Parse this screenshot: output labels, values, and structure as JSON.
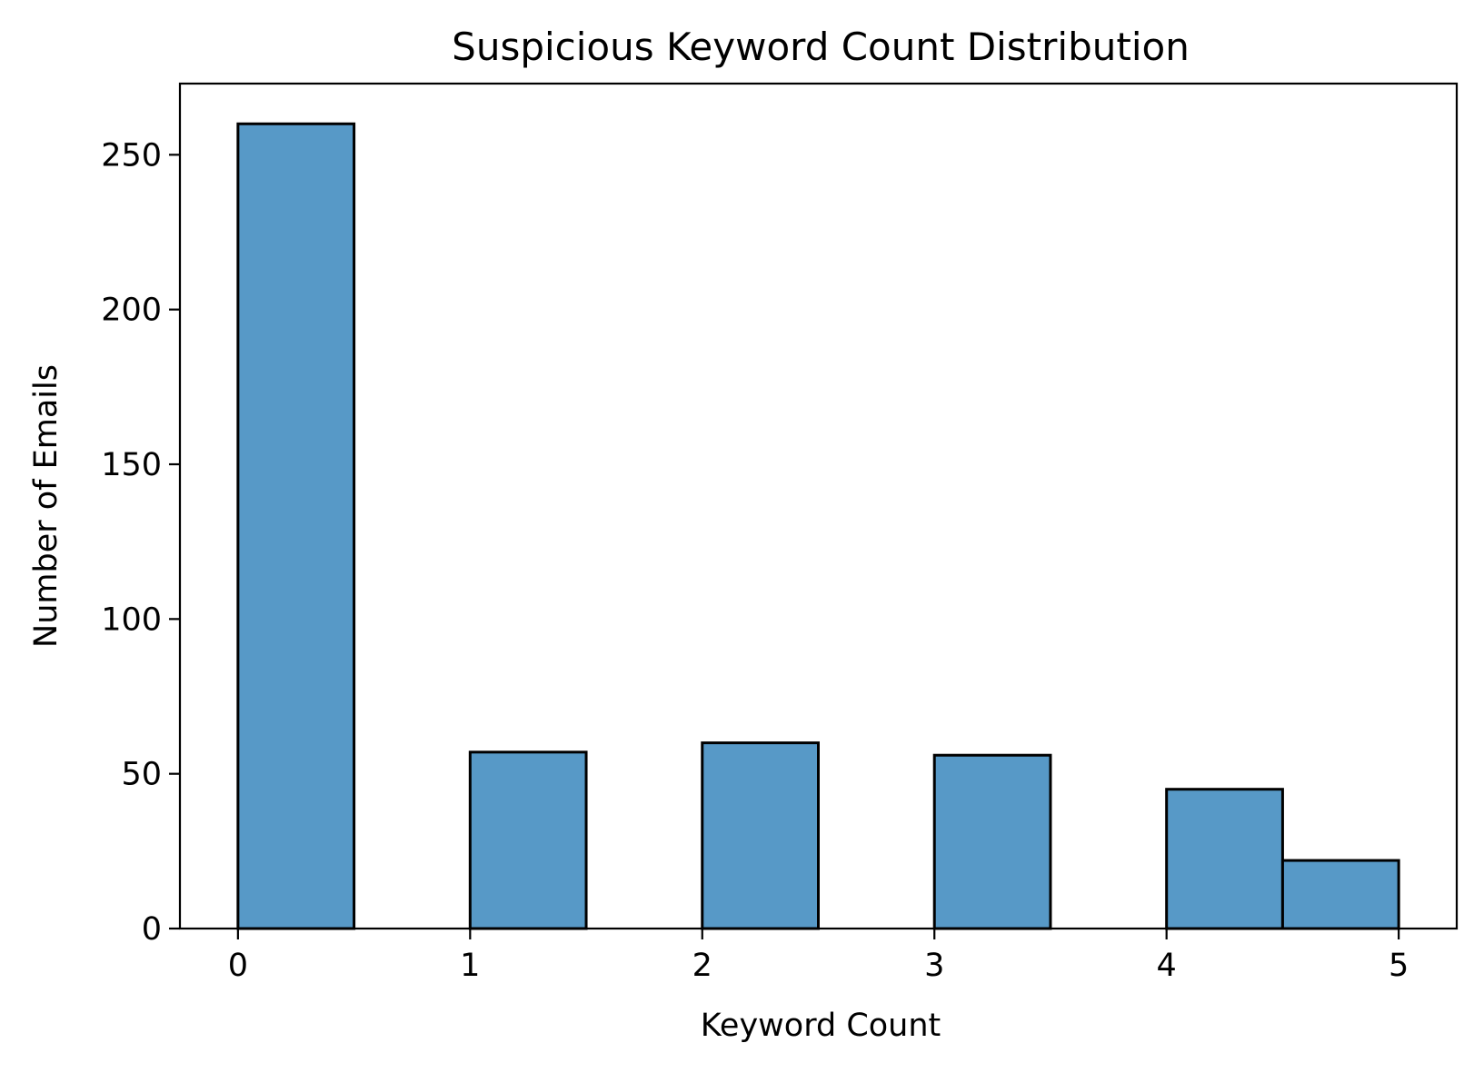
{
  "chart_data": {
    "type": "bar",
    "title": "Suspicious Keyword Count Distribution",
    "xlabel": "Keyword Count",
    "ylabel": "Number of Emails",
    "bins": [
      {
        "start": 0.0,
        "end": 0.5,
        "count": 260
      },
      {
        "start": 0.5,
        "end": 1.0,
        "count": 0
      },
      {
        "start": 1.0,
        "end": 1.5,
        "count": 57
      },
      {
        "start": 1.5,
        "end": 2.0,
        "count": 0
      },
      {
        "start": 2.0,
        "end": 2.5,
        "count": 60
      },
      {
        "start": 2.5,
        "end": 3.0,
        "count": 0
      },
      {
        "start": 3.0,
        "end": 3.5,
        "count": 56
      },
      {
        "start": 3.5,
        "end": 4.0,
        "count": 0
      },
      {
        "start": 4.0,
        "end": 4.5,
        "count": 45
      },
      {
        "start": 4.5,
        "end": 5.0,
        "count": 22
      }
    ],
    "xlim": [
      -0.25,
      5.25
    ],
    "ylim": [
      0,
      273
    ],
    "x_ticks": [
      "0",
      "1",
      "2",
      "3",
      "4",
      "5"
    ],
    "y_ticks": [
      "0",
      "50",
      "100",
      "150",
      "200",
      "250"
    ],
    "bar_color": "#5799c7",
    "edge_color": "#000000",
    "grid": false,
    "legend": "none"
  }
}
